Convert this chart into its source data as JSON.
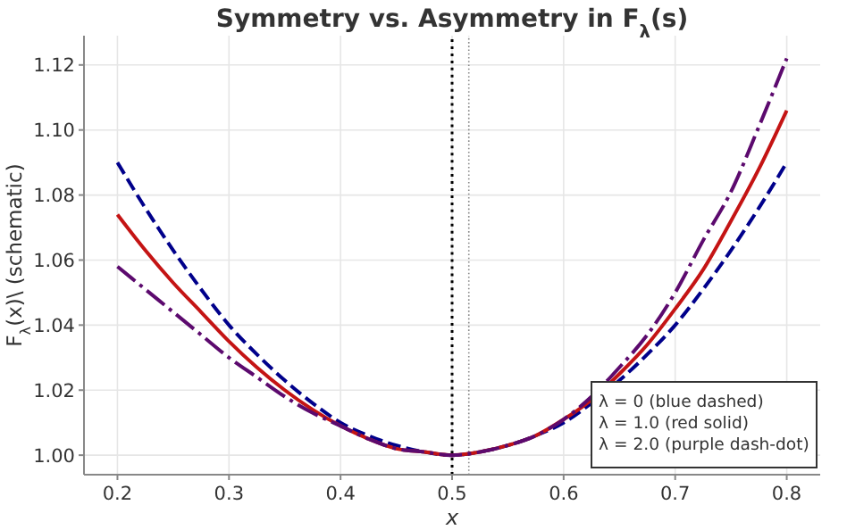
{
  "chart_data": {
    "type": "line",
    "title": "Symmetry vs. Asymmetry in F$_{λ}$(s)",
    "xlabel": "x",
    "ylabel": "F$_{λ}$(x)\\ (schematic)",
    "x": [
      0.2,
      0.225,
      0.25,
      0.275,
      0.3,
      0.325,
      0.35,
      0.375,
      0.4,
      0.425,
      0.45,
      0.475,
      0.5,
      0.525,
      0.55,
      0.575,
      0.6,
      0.625,
      0.65,
      0.675,
      0.7,
      0.725,
      0.75,
      0.775,
      0.8
    ],
    "series": [
      {
        "name": "λ = 0 (blue dashed)",
        "color": "#00008b",
        "line_style": "dashed",
        "values": [
          1.09,
          1.076,
          1.063,
          1.051,
          1.04,
          1.031,
          1.023,
          1.016,
          1.01,
          1.006,
          1.003,
          1.001,
          1,
          1.001,
          1.003,
          1.006,
          1.01,
          1.016,
          1.023,
          1.031,
          1.04,
          1.051,
          1.063,
          1.076,
          1.09
        ]
      },
      {
        "name": "λ = 1.0 (red solid)",
        "color": "#c41414",
        "line_style": "solid",
        "values": [
          1.074,
          1.063,
          1.053,
          1.044,
          1.035,
          1.027,
          1.02,
          1.014,
          1.009,
          1.005,
          1.002,
          1.001,
          1,
          1.001,
          1.003,
          1.006,
          1.011,
          1.017,
          1.025,
          1.034,
          1.045,
          1.057,
          1.072,
          1.088,
          1.106
        ]
      },
      {
        "name": "λ = 2.0 (purple dash-dot)",
        "color": "#5c0a6e",
        "line_style": "dashdot",
        "values": [
          1.058,
          1.051,
          1.044,
          1.037,
          1.03,
          1.024,
          1.018,
          1.013,
          1.009,
          1.005,
          1.002,
          1.001,
          1,
          1.001,
          1.003,
          1.006,
          1.011,
          1.018,
          1.027,
          1.037,
          1.05,
          1.066,
          1.081,
          1.101,
          1.122
        ]
      }
    ],
    "ref_lines": [
      {
        "axis": "x",
        "value": 0.5,
        "color": "#000000",
        "line_style": "dotted"
      },
      {
        "axis": "x",
        "value": 0.515,
        "color": "#888888",
        "line_style": "dotted"
      }
    ],
    "xlim": [
      0.17,
      0.83
    ],
    "ylim": [
      0.994,
      1.129
    ],
    "xticks": [
      0.2,
      0.3,
      0.4,
      0.5,
      0.6,
      0.7,
      0.8
    ],
    "yticks": [
      {
        "value": 1.0,
        "label": "1.00"
      },
      {
        "value": 1.02,
        "label": "1.02"
      },
      {
        "value": 1.04,
        "label": "1.04"
      },
      {
        "value": 1.06,
        "label": "1.06"
      },
      {
        "value": 1.08,
        "label": "1.08"
      },
      {
        "value": 1.1,
        "label": "1.10"
      },
      {
        "value": 1.12,
        "label": "1.12"
      }
    ],
    "grid": true,
    "legend": "bottom right",
    "marker": "none"
  }
}
